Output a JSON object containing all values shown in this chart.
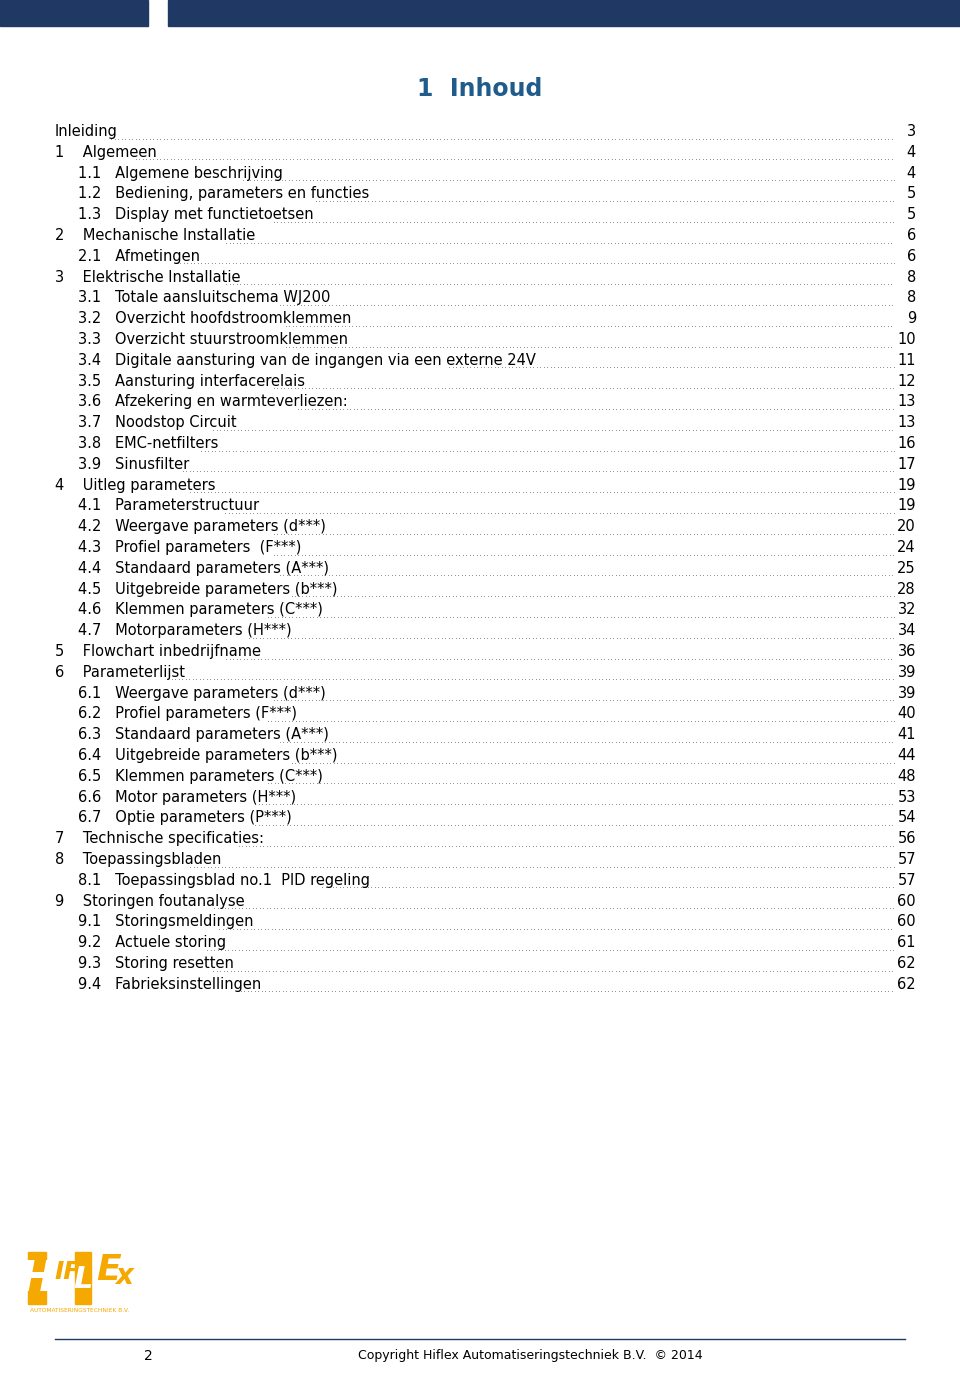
{
  "title": "1  Inhoud",
  "title_color": "#1F5C8B",
  "bg_color": "#FFFFFF",
  "header_bar_color": "#1F3864",
  "toc_entries": [
    {
      "label": "Inleiding",
      "page": "3",
      "indent": 0
    },
    {
      "label": "1    Algemeen",
      "page": "4",
      "indent": 0
    },
    {
      "label": "1.1   Algemene beschrijving",
      "page": "4",
      "indent": 1
    },
    {
      "label": "1.2   Bediening, parameters en functies",
      "page": "5",
      "indent": 1
    },
    {
      "label": "1.3   Display met functietoetsen",
      "page": "5",
      "indent": 1
    },
    {
      "label": "2    Mechanische Installatie",
      "page": "6",
      "indent": 0
    },
    {
      "label": "2.1   Afmetingen",
      "page": "6",
      "indent": 1
    },
    {
      "label": "3    Elektrische Installatie",
      "page": "8",
      "indent": 0
    },
    {
      "label": "3.1   Totale aansluitschema WJ200",
      "page": "8",
      "indent": 1
    },
    {
      "label": "3.2   Overzicht hoofdstroomklemmen",
      "page": "9",
      "indent": 1
    },
    {
      "label": "3.3   Overzicht stuurstroomklemmen",
      "page": "10",
      "indent": 1
    },
    {
      "label": "3.4   Digitale aansturing van de ingangen via een externe 24V",
      "page": "11",
      "indent": 1
    },
    {
      "label": "3.5   Aansturing interfacerelais",
      "page": "12",
      "indent": 1
    },
    {
      "label": "3.6   Afzekering en warmteverliezen:",
      "page": "13",
      "indent": 1
    },
    {
      "label": "3.7   Noodstop Circuit",
      "page": "13",
      "indent": 1
    },
    {
      "label": "3.8   EMC-netfilters",
      "page": "16",
      "indent": 1
    },
    {
      "label": "3.9   Sinusfilter",
      "page": "17",
      "indent": 1
    },
    {
      "label": "4    Uitleg parameters",
      "page": "19",
      "indent": 0
    },
    {
      "label": "4.1   Parameterstructuur",
      "page": "19",
      "indent": 1
    },
    {
      "label": "4.2   Weergave parameters (d***)",
      "page": "20",
      "indent": 1
    },
    {
      "label": "4.3   Profiel parameters  (F***)",
      "page": "24",
      "indent": 1
    },
    {
      "label": "4.4   Standaard parameters (A***)",
      "page": "25",
      "indent": 1
    },
    {
      "label": "4.5   Uitgebreide parameters (b***)",
      "page": "28",
      "indent": 1
    },
    {
      "label": "4.6   Klemmen parameters (C***)",
      "page": "32",
      "indent": 1
    },
    {
      "label": "4.7   Motorparameters (H***)",
      "page": "34",
      "indent": 1
    },
    {
      "label": "5    Flowchart inbedrijfname",
      "page": "36",
      "indent": 0
    },
    {
      "label": "6    Parameterlijst",
      "page": "39",
      "indent": 0
    },
    {
      "label": "6.1   Weergave parameters (d***)",
      "page": "39",
      "indent": 1
    },
    {
      "label": "6.2   Profiel parameters (F***)",
      "page": "40",
      "indent": 1
    },
    {
      "label": "6.3   Standaard parameters (A***)",
      "page": "41",
      "indent": 1
    },
    {
      "label": "6.4   Uitgebreide parameters (b***)",
      "page": "44",
      "indent": 1
    },
    {
      "label": "6.5   Klemmen parameters (C***)",
      "page": "48",
      "indent": 1
    },
    {
      "label": "6.6   Motor parameters (H***)",
      "page": "53",
      "indent": 1
    },
    {
      "label": "6.7   Optie parameters (P***)",
      "page": "54",
      "indent": 1
    },
    {
      "label": "7    Technische specificaties:",
      "page": "56",
      "indent": 0
    },
    {
      "label": "8    Toepassingsbladen",
      "page": "57",
      "indent": 0
    },
    {
      "label": "8.1   Toepassingsblad no.1  PID regeling",
      "page": "57",
      "indent": 1
    },
    {
      "label": "9    Storingen foutanalyse",
      "page": "60",
      "indent": 0
    },
    {
      "label": "9.1   Storingsmeldingen",
      "page": "60",
      "indent": 1
    },
    {
      "label": "9.2   Actuele storing",
      "page": "61",
      "indent": 1
    },
    {
      "label": "9.3   Storing resetten",
      "page": "62",
      "indent": 1
    },
    {
      "label": "9.4   Fabrieksinstellingen",
      "page": "62",
      "indent": 1
    }
  ],
  "footer_page_num": "2",
  "footer_copyright": "Copyright Hiflex Automatiseringstechniek B.V.  © 2014",
  "footer_line_color": "#1F3864",
  "text_color": "#000000",
  "page_num_color": "#000000",
  "dot_color": "#333333",
  "font_size": 10.5,
  "title_font_size": 17,
  "logo_color": "#F5A800"
}
